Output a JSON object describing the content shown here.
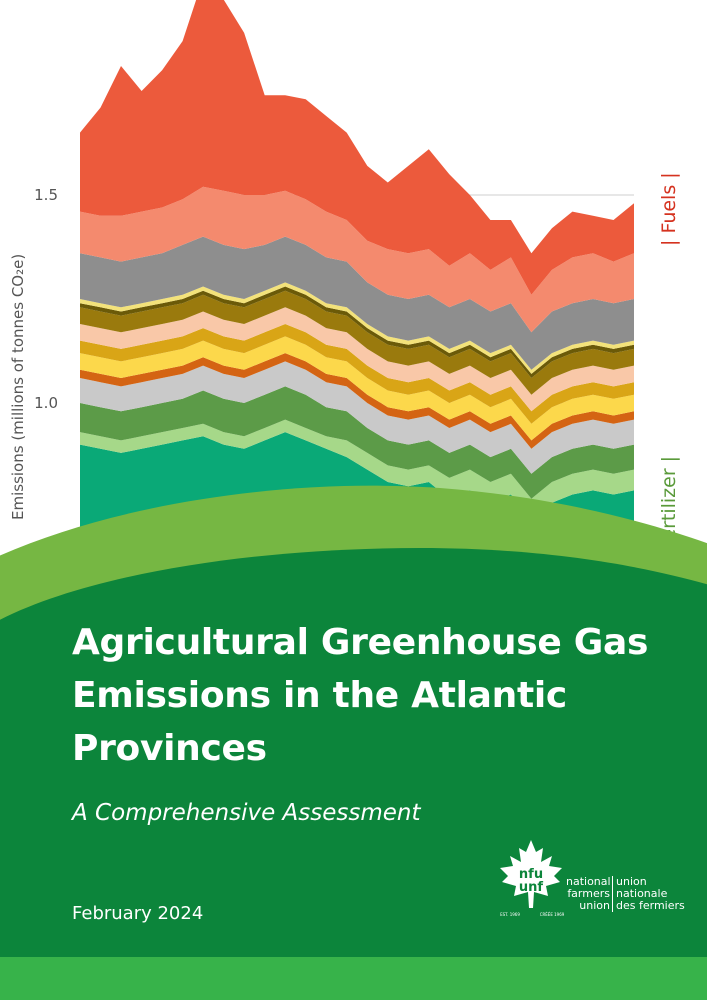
{
  "chart_data": {
    "type": "area",
    "title": "",
    "ylabel": "Emissions (millions of tonnes CO₂e)",
    "ylim": [
      0,
      1.9
    ],
    "yticks": [
      {
        "value": 1.0,
        "label": "1.0"
      },
      {
        "value": 1.5,
        "label": "1.5"
      }
    ],
    "x": [
      0,
      1,
      2,
      3,
      4,
      5,
      6,
      7,
      8,
      9,
      10,
      11,
      12,
      13,
      14,
      15,
      16,
      17,
      18,
      19,
      20,
      21,
      22,
      23,
      24,
      25,
      26,
      27
    ],
    "grid": true,
    "series": [
      {
        "color": "#0aa977",
        "values": [
          0.9,
          0.89,
          0.88,
          0.89,
          0.9,
          0.91,
          0.92,
          0.9,
          0.89,
          0.91,
          0.93,
          0.91,
          0.89,
          0.87,
          0.84,
          0.81,
          0.8,
          0.81,
          0.77,
          0.79,
          0.76,
          0.78,
          0.72,
          0.76,
          0.78,
          0.79,
          0.78,
          0.79
        ]
      },
      {
        "color": "#a6d889",
        "values": [
          0.03,
          0.03,
          0.03,
          0.03,
          0.03,
          0.03,
          0.03,
          0.03,
          0.03,
          0.03,
          0.03,
          0.03,
          0.03,
          0.04,
          0.04,
          0.04,
          0.04,
          0.04,
          0.05,
          0.05,
          0.05,
          0.05,
          0.05,
          0.05,
          0.05,
          0.05,
          0.05,
          0.05
        ]
      },
      {
        "color": "#5c9b48",
        "values": [
          0.07,
          0.07,
          0.07,
          0.07,
          0.07,
          0.07,
          0.08,
          0.08,
          0.08,
          0.08,
          0.08,
          0.08,
          0.07,
          0.07,
          0.06,
          0.06,
          0.06,
          0.06,
          0.06,
          0.06,
          0.06,
          0.06,
          0.06,
          0.06,
          0.06,
          0.06,
          0.06,
          0.06
        ]
      },
      {
        "color": "#c9c9c9",
        "values": [
          0.06,
          0.06,
          0.06,
          0.06,
          0.06,
          0.06,
          0.06,
          0.06,
          0.06,
          0.06,
          0.06,
          0.06,
          0.06,
          0.06,
          0.06,
          0.06,
          0.06,
          0.06,
          0.06,
          0.06,
          0.06,
          0.06,
          0.06,
          0.06,
          0.06,
          0.06,
          0.06,
          0.06
        ]
      },
      {
        "color": "#d46413",
        "values": [
          0.02,
          0.02,
          0.02,
          0.02,
          0.02,
          0.02,
          0.02,
          0.02,
          0.02,
          0.02,
          0.02,
          0.02,
          0.02,
          0.02,
          0.02,
          0.02,
          0.02,
          0.02,
          0.02,
          0.02,
          0.02,
          0.02,
          0.02,
          0.02,
          0.02,
          0.02,
          0.02,
          0.02
        ]
      },
      {
        "color": "#fcd84b",
        "values": [
          0.04,
          0.04,
          0.04,
          0.04,
          0.04,
          0.04,
          0.04,
          0.04,
          0.04,
          0.04,
          0.04,
          0.04,
          0.04,
          0.04,
          0.04,
          0.04,
          0.04,
          0.04,
          0.04,
          0.04,
          0.04,
          0.04,
          0.04,
          0.04,
          0.04,
          0.04,
          0.04,
          0.04
        ]
      },
      {
        "color": "#d9a516",
        "values": [
          0.03,
          0.03,
          0.03,
          0.03,
          0.03,
          0.03,
          0.03,
          0.03,
          0.03,
          0.03,
          0.03,
          0.03,
          0.03,
          0.03,
          0.03,
          0.03,
          0.03,
          0.03,
          0.03,
          0.03,
          0.03,
          0.03,
          0.03,
          0.03,
          0.03,
          0.03,
          0.03,
          0.03
        ]
      },
      {
        "color": "#f9c8a8",
        "values": [
          0.04,
          0.04,
          0.04,
          0.04,
          0.04,
          0.04,
          0.04,
          0.04,
          0.04,
          0.04,
          0.04,
          0.04,
          0.04,
          0.04,
          0.04,
          0.04,
          0.04,
          0.04,
          0.04,
          0.04,
          0.04,
          0.04,
          0.04,
          0.04,
          0.04,
          0.04,
          0.04,
          0.04
        ]
      },
      {
        "color": "#9a7a0d",
        "values": [
          0.04,
          0.04,
          0.04,
          0.04,
          0.04,
          0.04,
          0.04,
          0.04,
          0.04,
          0.04,
          0.04,
          0.04,
          0.04,
          0.04,
          0.04,
          0.04,
          0.04,
          0.04,
          0.04,
          0.04,
          0.04,
          0.04,
          0.04,
          0.04,
          0.04,
          0.04,
          0.04,
          0.04
        ]
      },
      {
        "color": "#6b5a08",
        "values": [
          0.01,
          0.01,
          0.01,
          0.01,
          0.01,
          0.01,
          0.01,
          0.01,
          0.01,
          0.01,
          0.01,
          0.01,
          0.01,
          0.01,
          0.01,
          0.01,
          0.01,
          0.01,
          0.01,
          0.01,
          0.01,
          0.01,
          0.01,
          0.01,
          0.01,
          0.01,
          0.01,
          0.01
        ]
      },
      {
        "color": "#f3e27a",
        "values": [
          0.01,
          0.01,
          0.01,
          0.01,
          0.01,
          0.01,
          0.01,
          0.01,
          0.01,
          0.01,
          0.01,
          0.01,
          0.01,
          0.01,
          0.01,
          0.01,
          0.01,
          0.01,
          0.01,
          0.01,
          0.01,
          0.01,
          0.01,
          0.01,
          0.01,
          0.01,
          0.01,
          0.01
        ]
      },
      {
        "color": "#8e8e8e",
        "values": [
          0.11,
          0.11,
          0.11,
          0.11,
          0.11,
          0.12,
          0.12,
          0.12,
          0.12,
          0.11,
          0.11,
          0.11,
          0.11,
          0.11,
          0.1,
          0.1,
          0.1,
          0.1,
          0.1,
          0.1,
          0.1,
          0.1,
          0.09,
          0.1,
          0.1,
          0.1,
          0.1,
          0.1
        ]
      },
      {
        "color": "#f48a6e",
        "values": [
          0.1,
          0.1,
          0.11,
          0.11,
          0.11,
          0.11,
          0.12,
          0.13,
          0.13,
          0.12,
          0.11,
          0.11,
          0.11,
          0.1,
          0.1,
          0.11,
          0.11,
          0.11,
          0.1,
          0.11,
          0.1,
          0.11,
          0.09,
          0.1,
          0.11,
          0.11,
          0.1,
          0.11
        ]
      },
      {
        "color": "#ec5a3c",
        "values": [
          0.19,
          0.26,
          0.36,
          0.29,
          0.33,
          0.38,
          0.5,
          0.46,
          0.39,
          0.24,
          0.23,
          0.24,
          0.23,
          0.21,
          0.18,
          0.16,
          0.21,
          0.24,
          0.22,
          0.14,
          0.12,
          0.09,
          0.1,
          0.1,
          0.11,
          0.09,
          0.1,
          0.12
        ]
      }
    ],
    "annotations": [
      {
        "text": "| Fuels |",
        "color": "#d5321f"
      },
      {
        "text": "| N fertilizer |",
        "color": "#5a9a3a"
      }
    ]
  },
  "title": "Agricultural Greenhouse Gas Emissions in the Atlantic Provinces",
  "subtitle": "A Comprehensive Assessment",
  "date": "February 2024",
  "logo": {
    "name": "nfu-unf-logo",
    "monogram_top": "nfu",
    "monogram_bottom": "unf",
    "est_left": "EST. 1969",
    "est_right": "CRÉÉE 1969",
    "english": [
      "national",
      "farmers",
      "union"
    ],
    "french": [
      "union",
      "nationale",
      "des fermiers"
    ]
  },
  "colors": {
    "light_green": "#76b743",
    "dark_green": "#0c853b",
    "bottom_bar": "#37b34a"
  }
}
